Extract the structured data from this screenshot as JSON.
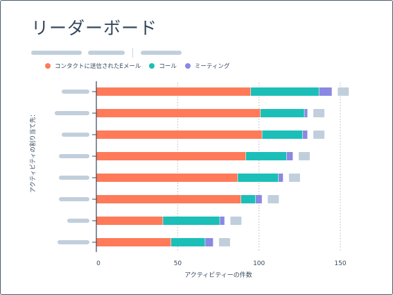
{
  "page": {
    "title": "リーダーボード"
  },
  "legend": [
    {
      "label": "コンタクトに送信されたEメール",
      "color": "#ff7a59"
    },
    {
      "label": "コール",
      "color": "#1bbfb8"
    },
    {
      "label": "ミーティング",
      "color": "#8a88e2"
    }
  ],
  "chart_data": {
    "type": "bar",
    "orientation": "horizontal",
    "stacked": true,
    "title": "リーダーボード",
    "xlabel": "アクティビティーの件数",
    "ylabel": "アクティビティの割り当て先：",
    "xlim": [
      0,
      150
    ],
    "xticks": [
      0,
      50,
      100,
      150
    ],
    "grid": "vertical-dotted",
    "legend_position": "top-left",
    "categories": [
      "",
      "",
      "",
      "",
      "",
      "",
      "",
      ""
    ],
    "series": [
      {
        "name": "コンタクトに送信されたEメール",
        "color": "#ff7a59",
        "values": [
          95,
          101,
          102,
          92,
          87,
          89,
          41,
          46
        ]
      },
      {
        "name": "コール",
        "color": "#1bbfb8",
        "values": [
          42,
          27,
          25,
          25,
          25,
          9,
          35,
          21
        ]
      },
      {
        "name": "ミーティング",
        "color": "#8a88e2",
        "values": [
          8,
          2,
          3,
          4,
          3,
          4,
          3,
          5
        ]
      }
    ],
    "totals": [
      145,
      130,
      130,
      121,
      115,
      102,
      79,
      72
    ]
  },
  "colors": {
    "placeholder": "#c1cfdc",
    "total_placeholder": "#c1cfdc",
    "axis": "#33475b",
    "grid": "#a8b8c8",
    "text": "#33475b"
  }
}
